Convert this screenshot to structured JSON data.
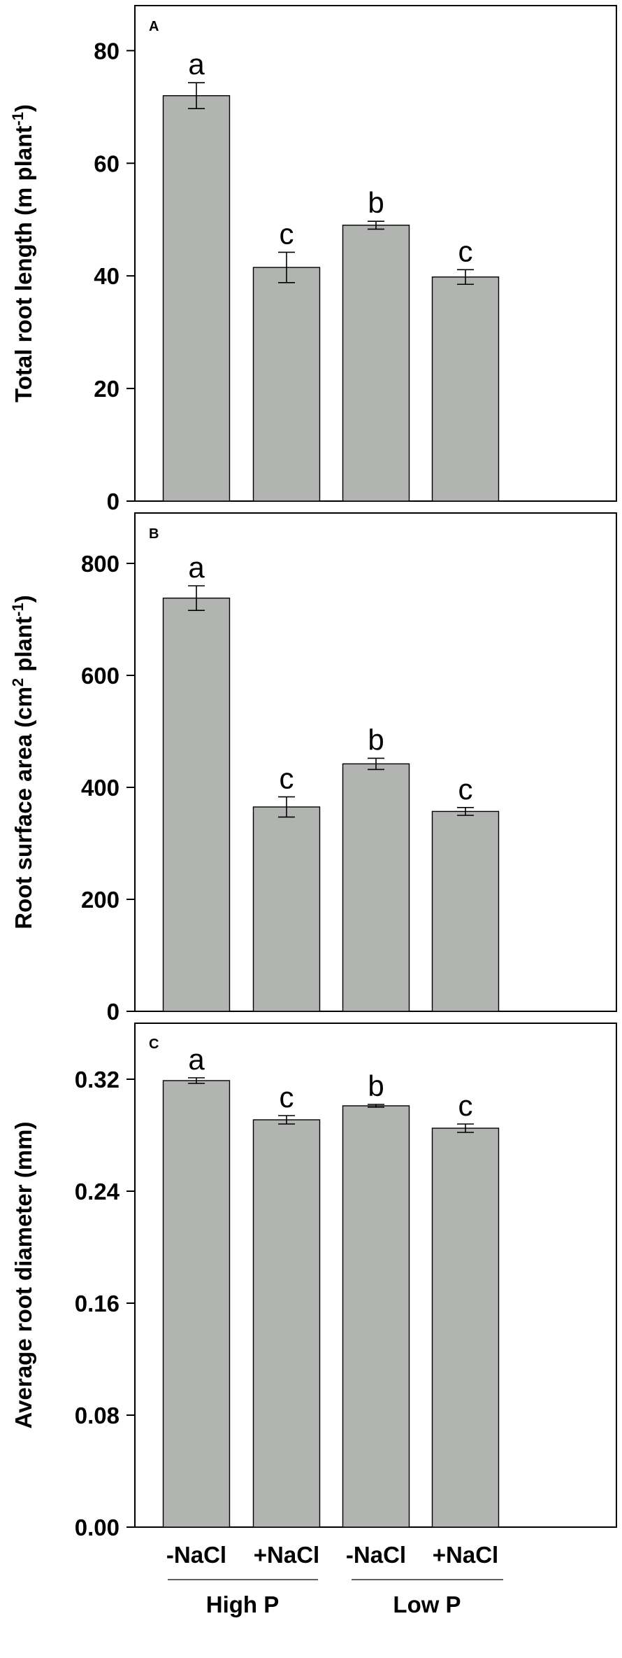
{
  "chart_data": [
    {
      "type": "bar",
      "panel": "A",
      "ylabel_main": "Total root length (m plant",
      "ylabel_sup": "-1",
      "ylabel_tail": ")",
      "ylim": [
        0,
        88
      ],
      "yticks": [
        0,
        20,
        40,
        60,
        80
      ],
      "ytick_labels": [
        "0",
        "20",
        "40",
        "60",
        "80"
      ],
      "categories": [
        "-NaCl",
        "+NaCl",
        "-NaCl",
        "+NaCl"
      ],
      "values": [
        72.0,
        41.5,
        49.0,
        39.8
      ],
      "errors": [
        2.3,
        2.7,
        0.7,
        1.3
      ],
      "letters": [
        "a",
        "c",
        "b",
        "c"
      ]
    },
    {
      "type": "bar",
      "panel": "B",
      "ylabel_main": "Root surface area (cm",
      "ylabel_sup": "2",
      "ylabel_mid": " plant",
      "ylabel_sup2": "-1",
      "ylabel_tail": ")",
      "ylim": [
        0,
        890
      ],
      "yticks": [
        0,
        200,
        400,
        600,
        800
      ],
      "ytick_labels": [
        "0",
        "200",
        "400",
        "600",
        "800"
      ],
      "categories": [
        "-NaCl",
        "+NaCl",
        "-NaCl",
        "+NaCl"
      ],
      "values": [
        738,
        365,
        442,
        357
      ],
      "errors": [
        22,
        18,
        10,
        7
      ],
      "letters": [
        "a",
        "c",
        "b",
        "c"
      ]
    },
    {
      "type": "bar",
      "panel": "C",
      "ylabel_main": "Average root diameter (mm)",
      "ylim": [
        0,
        0.36
      ],
      "yticks": [
        0,
        0.08,
        0.16,
        0.24,
        0.32
      ],
      "ytick_labels": [
        "0.00",
        "0.08",
        "0.16",
        "0.24",
        "0.32"
      ],
      "categories": [
        "-NaCl",
        "+NaCl",
        "-NaCl",
        "+NaCl"
      ],
      "values": [
        0.319,
        0.291,
        0.301,
        0.285
      ],
      "errors": [
        0.002,
        0.003,
        0.001,
        0.003
      ],
      "letters": [
        "a",
        "c",
        "b",
        "c"
      ]
    }
  ],
  "groups": [
    "High P",
    "Low P"
  ]
}
